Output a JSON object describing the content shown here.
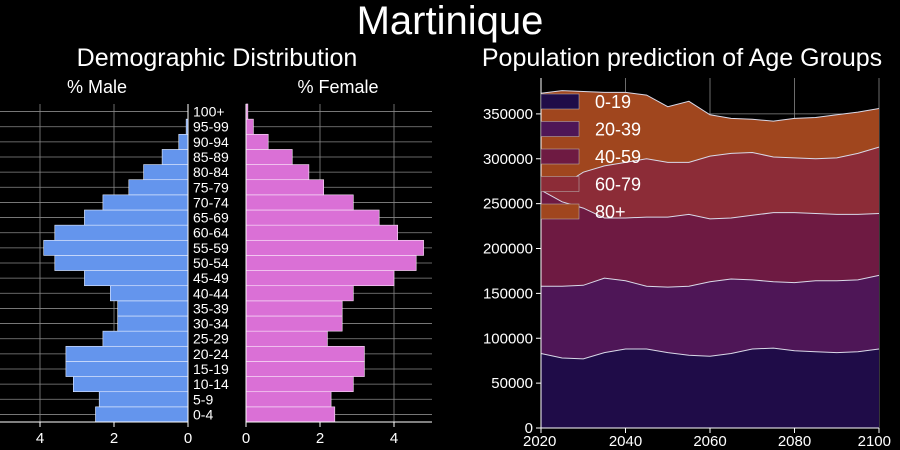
{
  "title": "Martinique",
  "pyramid": {
    "title": "Demographic Distribution",
    "male_label": "% Male",
    "female_label": "% Female",
    "age_groups": [
      "0-4",
      "5-9",
      "10-14",
      "15-19",
      "20-24",
      "25-29",
      "30-34",
      "35-39",
      "40-44",
      "45-49",
      "50-54",
      "55-59",
      "60-64",
      "65-69",
      "70-74",
      "75-79",
      "80-84",
      "85-89",
      "90-94",
      "95-99",
      "100+"
    ],
    "male": [
      2.5,
      2.4,
      3.1,
      3.3,
      3.3,
      2.3,
      1.9,
      1.9,
      2.1,
      2.8,
      3.6,
      3.9,
      3.6,
      2.8,
      2.3,
      1.6,
      1.2,
      0.7,
      0.25,
      0.05,
      0.0
    ],
    "female": [
      2.4,
      2.3,
      2.9,
      3.2,
      3.2,
      2.2,
      2.6,
      2.6,
      2.9,
      4.0,
      4.6,
      4.8,
      4.1,
      3.6,
      2.9,
      2.1,
      1.7,
      1.25,
      0.6,
      0.2,
      0.05
    ],
    "male_ticks": [
      "4",
      "2",
      "0"
    ],
    "female_ticks": [
      "0",
      "2",
      "4"
    ],
    "male_color": "#6495ed",
    "female_color": "#da70d6"
  },
  "chart_data": {
    "type": "area",
    "title": "Population prediction of Age Groups",
    "xlabel": "",
    "ylabel": "",
    "x": [
      2020,
      2025,
      2030,
      2035,
      2040,
      2045,
      2050,
      2055,
      2060,
      2065,
      2070,
      2075,
      2080,
      2085,
      2090,
      2095,
      2100
    ],
    "xlim": [
      2020,
      2100
    ],
    "ylim": [
      0,
      390000
    ],
    "x_ticks": [
      "2020",
      "2040",
      "2060",
      "2080",
      "2100"
    ],
    "y_ticks": [
      "0",
      "50000",
      "100000",
      "150000",
      "200000",
      "250000",
      "300000",
      "350000"
    ],
    "grid": true,
    "legend_position": "top-left",
    "series": [
      {
        "name": "0-19",
        "color": "#1f0c48",
        "values": [
          83000,
          78000,
          77000,
          84000,
          88000,
          88000,
          84000,
          81000,
          80000,
          83000,
          88000,
          89000,
          86000,
          85000,
          84000,
          85000,
          88000
        ]
      },
      {
        "name": "20-39",
        "color": "#4e1657",
        "values": [
          75000,
          80000,
          82000,
          83000,
          76000,
          70000,
          73000,
          77000,
          83000,
          83000,
          77000,
          74000,
          76000,
          79000,
          80000,
          80000,
          82000
        ]
      },
      {
        "name": "40-59",
        "color": "#6e1a42",
        "values": [
          107000,
          94000,
          86000,
          67000,
          70000,
          77000,
          78000,
          80000,
          70000,
          68000,
          72000,
          77000,
          78000,
          75000,
          74000,
          73000,
          69000
        ]
      },
      {
        "name": "60-79",
        "color": "#8c2c37",
        "values": [
          0,
          18000,
          40000,
          58000,
          62000,
          65000,
          61000,
          58000,
          70000,
          72000,
          70000,
          62000,
          61000,
          61000,
          63000,
          68000,
          74000
        ]
      },
      {
        "name": "80+",
        "color": "#a0461e",
        "values": [
          108000,
          106000,
          90000,
          82000,
          78000,
          71000,
          62000,
          68000,
          46000,
          39000,
          37000,
          40000,
          44000,
          46000,
          48000,
          46000,
          43000
        ]
      }
    ]
  }
}
